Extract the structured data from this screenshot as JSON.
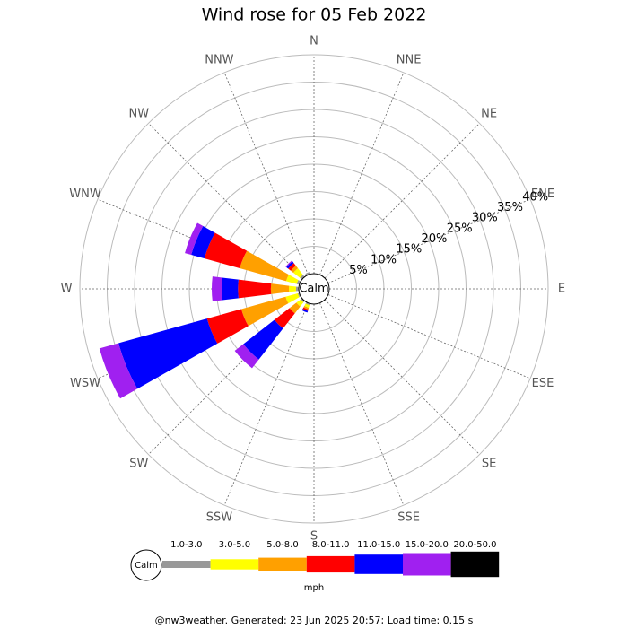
{
  "chart_data": {
    "type": "windrose",
    "title": "Wind rose for 05 Feb 2022",
    "center_label": "Calm",
    "categories": [
      "N",
      "NNE",
      "NE",
      "ENE",
      "E",
      "ESE",
      "SE",
      "SSE",
      "S",
      "SSW",
      "SW",
      "WSW",
      "W",
      "WNW",
      "NW",
      "NNW"
    ],
    "series": [
      {
        "name": "1.0-3.0",
        "color": "#999999",
        "values": [
          0,
          0,
          0,
          0,
          0,
          0,
          0,
          0,
          0,
          0.3,
          0.3,
          0.3,
          0.5,
          0.5,
          0.5,
          0.4
        ]
      },
      {
        "name": "3.0-5.0",
        "color": "#ffff00",
        "values": [
          0,
          0,
          0,
          0,
          0,
          0,
          0,
          0,
          0,
          0.5,
          1,
          2.3,
          1.3,
          2,
          1.5,
          0
        ]
      },
      {
        "name": "5.0-8.0",
        "color": "#ffa000",
        "values": [
          0,
          0,
          0,
          0,
          0,
          0,
          0,
          0,
          0,
          0.3,
          1.6,
          8.4,
          3.3,
          8.8,
          0.6,
          0
        ]
      },
      {
        "name": "8.0-11.0",
        "color": "#ff0000",
        "values": [
          0,
          0,
          0,
          0,
          0,
          0,
          0,
          0,
          0,
          0.3,
          3.5,
          6.5,
          6,
          6.7,
          0.6,
          0
        ]
      },
      {
        "name": "11.0-15.0",
        "color": "#0000ff",
        "values": [
          0,
          0,
          0,
          0,
          0,
          0,
          0,
          0,
          0,
          0.3,
          7.2,
          16.8,
          3,
          2.5,
          0.4,
          0
        ]
      },
      {
        "name": "15.0-20.0",
        "color": "#a020f0",
        "values": [
          0,
          0,
          0,
          0,
          0,
          0,
          0,
          0,
          0,
          0,
          2,
          3.6,
          1.8,
          1.2,
          0.2,
          0
        ]
      },
      {
        "name": "20.0-50.0",
        "color": "#000000",
        "values": [
          0,
          0,
          0,
          0,
          0,
          0,
          0,
          0,
          0,
          0,
          0,
          0,
          0,
          0,
          0,
          0
        ]
      }
    ],
    "rlim": [
      0,
      40
    ],
    "rticks": [
      {
        "value": 5,
        "label": "5%"
      },
      {
        "value": 10,
        "label": "10%"
      },
      {
        "value": 15,
        "label": "15%"
      },
      {
        "value": 20,
        "label": "20%"
      },
      {
        "value": 25,
        "label": "25%"
      },
      {
        "value": 30,
        "label": "30%"
      },
      {
        "value": 35,
        "label": "35%"
      },
      {
        "value": 40,
        "label": "40%"
      }
    ],
    "legend_unit": "mph",
    "footer": "@nw3weather. Generated: 23 Jun 2025 20:57; Load time: 0.15 s"
  }
}
